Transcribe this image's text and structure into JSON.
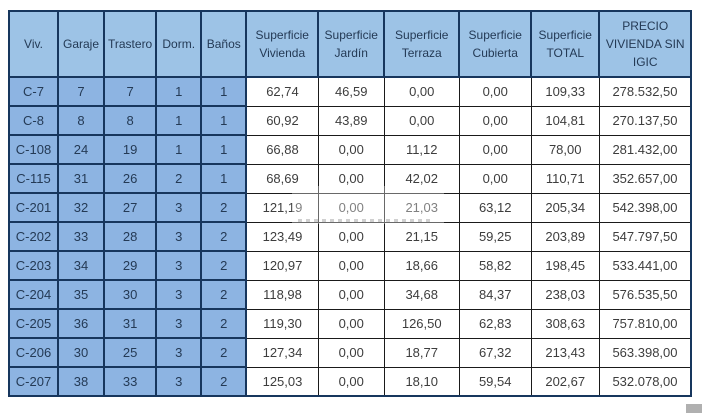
{
  "table": {
    "columns": [
      "Viv.",
      "Garaje",
      "Trastero",
      "Dorm.",
      "Baños",
      "Superficie Vivienda",
      "Superficie Jardín",
      "Superficie Terraza",
      "Superficie Cubierta",
      "Superficie TOTAL",
      "PRECIO VIVIENDA SIN IGIC"
    ],
    "rows": [
      [
        "C-7",
        "7",
        "7",
        "1",
        "1",
        "62,74",
        "46,59",
        "0,00",
        "0,00",
        "109,33",
        "278.532,50"
      ],
      [
        "C-8",
        "8",
        "8",
        "1",
        "1",
        "60,92",
        "43,89",
        "0,00",
        "0,00",
        "104,81",
        "270.137,50"
      ],
      [
        "C-108",
        "24",
        "19",
        "1",
        "1",
        "66,88",
        "0,00",
        "11,12",
        "0,00",
        "78,00",
        "281.432,00"
      ],
      [
        "C-115",
        "31",
        "26",
        "2",
        "1",
        "68,69",
        "0,00",
        "42,02",
        "0,00",
        "110,71",
        "352.657,00"
      ],
      [
        "C-201",
        "32",
        "27",
        "3",
        "2",
        "121,19",
        "0,00",
        "21,03",
        "63,12",
        "205,34",
        "542.398,00"
      ],
      [
        "C-202",
        "33",
        "28",
        "3",
        "2",
        "123,49",
        "0,00",
        "21,15",
        "59,25",
        "203,89",
        "547.797,50"
      ],
      [
        "C-203",
        "34",
        "29",
        "3",
        "2",
        "120,97",
        "0,00",
        "18,66",
        "58,82",
        "198,45",
        "533.441,00"
      ],
      [
        "C-204",
        "35",
        "30",
        "3",
        "2",
        "118,98",
        "0,00",
        "34,68",
        "84,37",
        "238,03",
        "576.535,50"
      ],
      [
        "C-205",
        "36",
        "31",
        "3",
        "2",
        "119,30",
        "0,00",
        "126,50",
        "62,83",
        "308,63",
        "757.810,00"
      ],
      [
        "C-206",
        "30",
        "25",
        "3",
        "2",
        "127,34",
        "0,00",
        "18,77",
        "67,32",
        "213,43",
        "563.398,00"
      ],
      [
        "C-207",
        "38",
        "33",
        "3",
        "2",
        "125,03",
        "0,00",
        "18,10",
        "59,54",
        "202,67",
        "532.078,00"
      ]
    ]
  },
  "colors": {
    "header_fill": "#9DC3E6",
    "label_fill": "#8DB4E2",
    "grid_blue": "#17365D",
    "grid_dark": "#1a1a1a",
    "blue_text": "#243a55",
    "data_text": "#3d3d3d"
  }
}
